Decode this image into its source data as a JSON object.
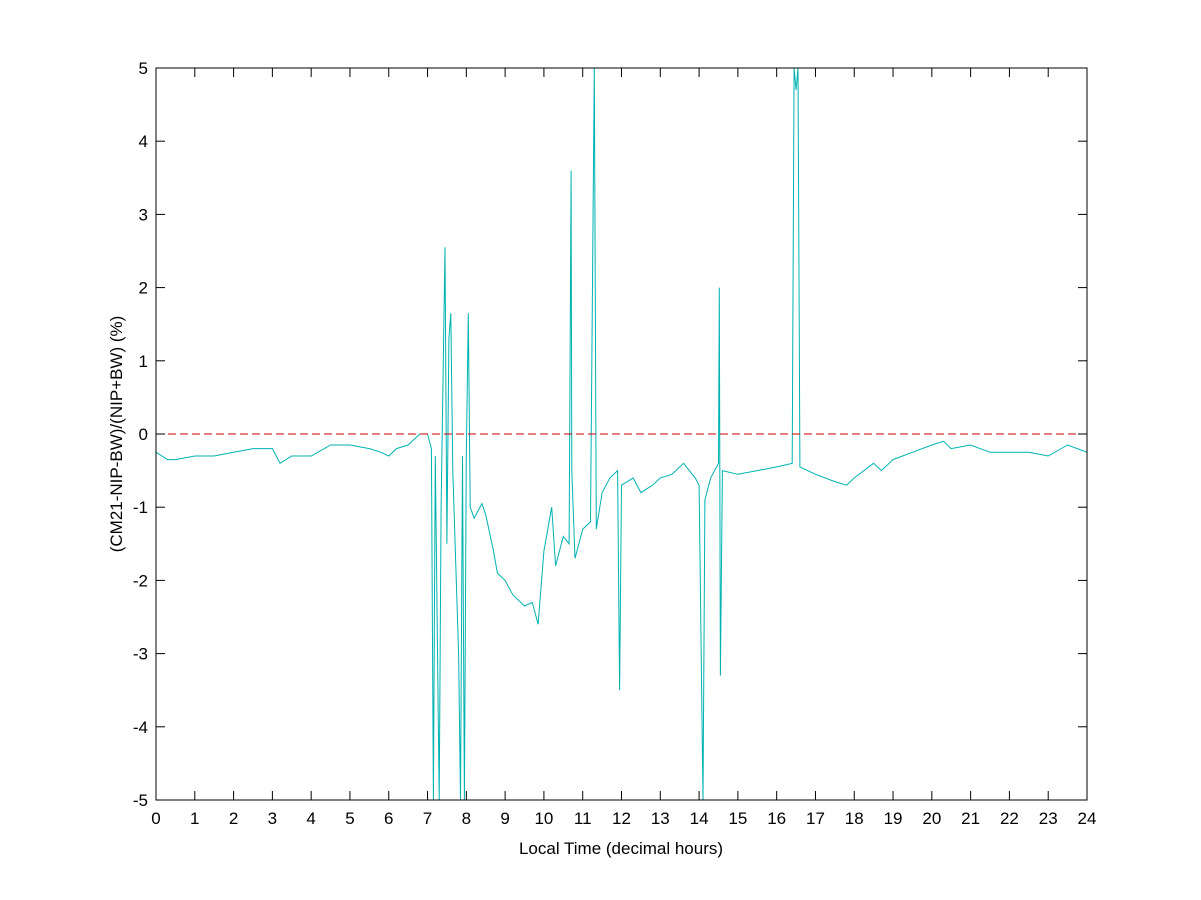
{
  "chart_data": {
    "type": "line",
    "title": "",
    "xlabel": "Local Time (decimal hours)",
    "ylabel": "(CM21-NIP-BW)/(NIP+BW) (%)",
    "xlim": [
      0,
      24
    ],
    "ylim": [
      -5,
      5
    ],
    "xticks": [
      0,
      1,
      2,
      3,
      4,
      5,
      6,
      7,
      8,
      9,
      10,
      11,
      12,
      13,
      14,
      15,
      16,
      17,
      18,
      19,
      20,
      21,
      22,
      23,
      24
    ],
    "yticks": [
      -5,
      -4,
      -3,
      -2,
      -1,
      0,
      1,
      2,
      3,
      4,
      5
    ],
    "grid": false,
    "series": [
      {
        "color": "#00b2b2",
        "x": [
          0,
          0.3,
          0.5,
          1,
          1.5,
          2,
          2.5,
          3,
          3.2,
          3.5,
          4,
          4.5,
          5,
          5.5,
          5.8,
          6,
          6.2,
          6.5,
          6.8,
          7,
          7.1,
          7.15,
          7.2,
          7.3,
          7.35,
          7.45,
          7.5,
          7.55,
          7.6,
          7.65,
          7.8,
          7.85,
          7.9,
          7.95,
          8.0,
          8.05,
          8.1,
          8.2,
          8.4,
          8.5,
          8.7,
          8.8,
          9.0,
          9.2,
          9.5,
          9.7,
          9.85,
          10.0,
          10.2,
          10.3,
          10.5,
          10.65,
          10.7,
          10.72,
          10.8,
          11.0,
          11.2,
          11.3,
          11.35,
          11.5,
          11.7,
          11.9,
          11.95,
          12.0,
          12.3,
          12.5,
          12.8,
          13.0,
          13.3,
          13.6,
          13.9,
          14.0,
          14.1,
          14.15,
          14.3,
          14.5,
          14.52,
          14.55,
          14.6,
          15.0,
          15.5,
          16.0,
          16.4,
          16.45,
          16.5,
          16.55,
          16.6,
          17.0,
          17.5,
          17.8,
          18.0,
          18.5,
          18.7,
          19.0,
          19.5,
          20.0,
          20.3,
          20.5,
          21.0,
          21.5,
          22.0,
          22.5,
          23.0,
          23.5,
          24
        ],
        "y": [
          -0.25,
          -0.35,
          -0.35,
          -0.3,
          -0.3,
          -0.25,
          -0.2,
          -0.2,
          -0.4,
          -0.3,
          -0.3,
          -0.15,
          -0.15,
          -0.2,
          -0.25,
          -0.3,
          -0.2,
          -0.15,
          0.0,
          0.0,
          -0.2,
          -5,
          -0.3,
          -5,
          -1,
          2.55,
          -1.5,
          1.3,
          1.65,
          -0.5,
          -3,
          -5,
          -0.3,
          -5,
          -0.3,
          1.65,
          -1.0,
          -1.15,
          -0.95,
          -1.1,
          -1.6,
          -1.9,
          -2.0,
          -2.2,
          -2.35,
          -2.3,
          -2.6,
          -1.6,
          -1.0,
          -1.8,
          -1.4,
          -1.5,
          3.6,
          -0.5,
          -1.7,
          -1.3,
          -1.2,
          5,
          -1.3,
          -0.8,
          -0.6,
          -0.5,
          -3.5,
          -0.7,
          -0.6,
          -0.8,
          -0.7,
          -0.6,
          -0.55,
          -0.4,
          -0.6,
          -0.7,
          -5,
          -0.9,
          -0.6,
          -0.4,
          2.0,
          -3.3,
          -0.5,
          -0.55,
          -0.5,
          -0.45,
          -0.4,
          5,
          4.7,
          5,
          -0.45,
          -0.55,
          -0.65,
          -0.7,
          -0.6,
          -0.4,
          -0.5,
          -0.35,
          -0.25,
          -0.15,
          -0.1,
          -0.2,
          -0.15,
          -0.25,
          -0.25,
          -0.25,
          -0.3,
          -0.15,
          -0.25
        ]
      },
      {
        "color": "#cc0000",
        "style": "dashed",
        "x": [
          0,
          24
        ],
        "y": [
          0,
          0
        ]
      }
    ]
  }
}
